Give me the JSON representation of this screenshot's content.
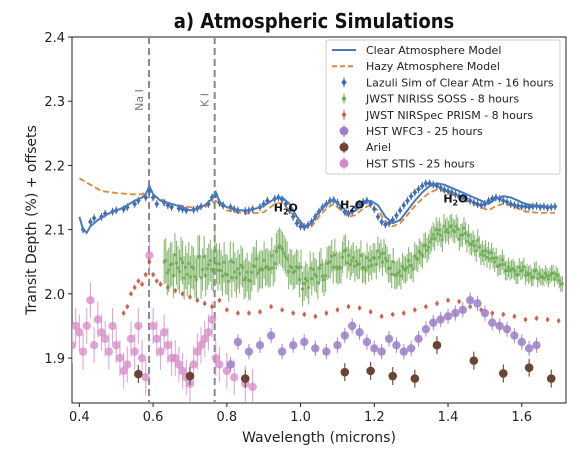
{
  "chart_data": {
    "type": "scatter",
    "title": "a) Atmospheric Simulations",
    "xlabel": "Wavelength (microns)",
    "ylabel": "Transit Depth (%) + offsets",
    "xlim": [
      0.38,
      1.72
    ],
    "ylim": [
      1.83,
      2.4
    ],
    "xticks": [
      "0.4",
      "0.6",
      "0.8",
      "1.0",
      "1.2",
      "1.4",
      "1.6"
    ],
    "yticks": [
      "1.9",
      "2.0",
      "2.1",
      "2.2",
      "2.3",
      "2.4"
    ],
    "legend_position": "top-right",
    "colors": {
      "clear": "#4a7ab8",
      "hazy": "#e0883a",
      "lazuli": "#3f6db0",
      "niriss": "#6aa84f",
      "nirspec": "#cc5a45",
      "wfc3": "#9b7fc8",
      "ariel": "#6b4436",
      "stis": "#d58ac6",
      "vline": "#888888"
    },
    "vlines": [
      {
        "x": 0.589,
        "label": "Na I"
      },
      {
        "x": 0.767,
        "label": "K I"
      }
    ],
    "annotations": [
      {
        "text": "H2O",
        "x": 0.96,
        "y": 2.128
      },
      {
        "text": "H2O",
        "x": 1.14,
        "y": 2.133
      },
      {
        "text": "H2O",
        "x": 1.42,
        "y": 2.142
      }
    ],
    "series": [
      {
        "name": "Clear Atmosphere Model",
        "kind": "line",
        "dash": false,
        "x": [
          0.4,
          0.41,
          0.42,
          0.43,
          0.45,
          0.47,
          0.49,
          0.51,
          0.53,
          0.55,
          0.57,
          0.58,
          0.59,
          0.6,
          0.62,
          0.65,
          0.68,
          0.7,
          0.72,
          0.74,
          0.76,
          0.77,
          0.78,
          0.8,
          0.83,
          0.86,
          0.88,
          0.9,
          0.93,
          0.95,
          0.97,
          0.99,
          1.01,
          1.03,
          1.05,
          1.07,
          1.09,
          1.11,
          1.13,
          1.15,
          1.17,
          1.19,
          1.21,
          1.23,
          1.25,
          1.27,
          1.29,
          1.31,
          1.33,
          1.35,
          1.37,
          1.39,
          1.41,
          1.43,
          1.45,
          1.47,
          1.49,
          1.51,
          1.53,
          1.55,
          1.57,
          1.59,
          1.61,
          1.63,
          1.65,
          1.67,
          1.69
        ],
        "y": [
          2.12,
          2.1,
          2.095,
          2.105,
          2.115,
          2.122,
          2.128,
          2.132,
          2.138,
          2.145,
          2.15,
          2.155,
          2.168,
          2.155,
          2.145,
          2.14,
          2.135,
          2.13,
          2.132,
          2.138,
          2.148,
          2.158,
          2.143,
          2.135,
          2.13,
          2.13,
          2.133,
          2.137,
          2.148,
          2.15,
          2.14,
          2.12,
          2.105,
          2.11,
          2.128,
          2.14,
          2.146,
          2.136,
          2.126,
          2.13,
          2.14,
          2.145,
          2.138,
          2.12,
          2.11,
          2.115,
          2.13,
          2.145,
          2.158,
          2.168,
          2.172,
          2.17,
          2.165,
          2.16,
          2.155,
          2.15,
          2.145,
          2.14,
          2.148,
          2.152,
          2.15,
          2.145,
          2.14,
          2.138,
          2.137,
          2.136,
          2.136
        ]
      },
      {
        "name": "Hazy Atmosphere Model",
        "kind": "line",
        "dash": true,
        "x": [
          0.4,
          0.43,
          0.46,
          0.5,
          0.54,
          0.57,
          0.59,
          0.61,
          0.65,
          0.7,
          0.74,
          0.77,
          0.8,
          0.85,
          0.9,
          0.93,
          0.95,
          0.97,
          0.99,
          1.01,
          1.03,
          1.05,
          1.07,
          1.09,
          1.11,
          1.13,
          1.15,
          1.17,
          1.19,
          1.21,
          1.23,
          1.25,
          1.27,
          1.29,
          1.31,
          1.33,
          1.35,
          1.37,
          1.39,
          1.41,
          1.43,
          1.45,
          1.47,
          1.49,
          1.51,
          1.53,
          1.55,
          1.57,
          1.59,
          1.61,
          1.63,
          1.65,
          1.67,
          1.69
        ],
        "y": [
          2.18,
          2.17,
          2.16,
          2.157,
          2.155,
          2.155,
          2.162,
          2.15,
          2.14,
          2.135,
          2.135,
          2.145,
          2.13,
          2.125,
          2.127,
          2.14,
          2.142,
          2.13,
          2.115,
          2.103,
          2.105,
          2.12,
          2.133,
          2.14,
          2.13,
          2.12,
          2.123,
          2.133,
          2.138,
          2.13,
          2.113,
          2.105,
          2.11,
          2.123,
          2.137,
          2.148,
          2.158,
          2.162,
          2.16,
          2.155,
          2.15,
          2.145,
          2.14,
          2.135,
          2.13,
          2.137,
          2.14,
          2.138,
          2.133,
          2.128,
          2.127,
          2.126,
          2.126,
          2.126
        ]
      },
      {
        "name": "Lazuli Sim of Clear Atm - 16 hours",
        "kind": "errorbar",
        "marker": "diamond",
        "x": [
          0.41,
          0.43,
          0.44,
          0.46,
          0.47,
          0.49,
          0.5,
          0.52,
          0.53,
          0.55,
          0.56,
          0.58,
          0.59,
          0.6,
          0.61,
          0.63,
          0.64,
          0.65,
          0.67,
          0.68,
          0.69,
          0.71,
          0.72,
          0.73,
          0.75,
          0.76,
          0.77,
          0.78,
          0.79,
          0.81,
          0.82,
          0.83,
          0.85,
          0.86,
          0.87,
          0.89,
          0.9,
          0.91,
          0.93,
          0.94,
          0.95,
          0.96,
          0.97,
          0.98,
          0.99,
          1.0,
          1.01,
          1.02,
          1.03,
          1.04,
          1.05,
          1.06,
          1.07,
          1.08,
          1.09,
          1.1,
          1.11,
          1.12,
          1.13,
          1.14,
          1.15,
          1.16,
          1.17,
          1.18,
          1.19,
          1.2,
          1.21,
          1.22,
          1.23,
          1.24,
          1.25,
          1.26,
          1.27,
          1.28,
          1.29,
          1.3,
          1.31,
          1.32,
          1.33,
          1.34,
          1.35,
          1.36,
          1.37,
          1.38,
          1.39,
          1.4,
          1.41,
          1.42,
          1.43,
          1.44,
          1.45,
          1.46,
          1.47,
          1.48,
          1.49,
          1.5,
          1.51,
          1.52,
          1.53,
          1.54,
          1.55,
          1.56,
          1.57,
          1.58,
          1.59,
          1.6,
          1.61,
          1.62,
          1.63,
          1.64,
          1.65,
          1.66,
          1.67,
          1.68,
          1.69
        ],
        "y": [
          2.1,
          2.112,
          2.118,
          2.12,
          2.125,
          2.128,
          2.13,
          2.132,
          2.135,
          2.14,
          2.145,
          2.15,
          2.16,
          2.15,
          2.14,
          2.142,
          2.138,
          2.135,
          2.133,
          2.132,
          2.13,
          2.131,
          2.133,
          2.136,
          2.14,
          2.15,
          2.155,
          2.142,
          2.138,
          2.135,
          2.132,
          2.13,
          2.129,
          2.13,
          2.132,
          2.135,
          2.14,
          2.145,
          2.148,
          2.15,
          2.147,
          2.14,
          2.13,
          2.12,
          2.11,
          2.105,
          2.104,
          2.107,
          2.112,
          2.12,
          2.128,
          2.135,
          2.14,
          2.145,
          2.146,
          2.142,
          2.135,
          2.128,
          2.125,
          2.128,
          2.135,
          2.14,
          2.143,
          2.145,
          2.14,
          2.132,
          2.12,
          2.112,
          2.108,
          2.11,
          2.115,
          2.122,
          2.13,
          2.138,
          2.145,
          2.152,
          2.158,
          2.163,
          2.168,
          2.172,
          2.172,
          2.17,
          2.168,
          2.165,
          2.162,
          2.16,
          2.158,
          2.155,
          2.152,
          2.15,
          2.148,
          2.145,
          2.142,
          2.14,
          2.138,
          2.14,
          2.145,
          2.148,
          2.15,
          2.148,
          2.145,
          2.143,
          2.14,
          2.138,
          2.137,
          2.136,
          2.136,
          2.135,
          2.136,
          2.137,
          2.135,
          2.136,
          2.134,
          2.135,
          2.136
        ],
        "err": 0.006
      },
      {
        "name": "JWST NIRISS SOSS - 8 hours",
        "kind": "errorbar",
        "marker": "dot",
        "dense": true,
        "x_start": 0.63,
        "x_end": 1.71,
        "count": 260,
        "profile_x": [
          0.63,
          0.66,
          0.7,
          0.74,
          0.77,
          0.8,
          0.85,
          0.9,
          0.94,
          0.97,
          1.01,
          1.05,
          1.09,
          1.13,
          1.17,
          1.21,
          1.25,
          1.29,
          1.33,
          1.37,
          1.41,
          1.45,
          1.49,
          1.53,
          1.57,
          1.61,
          1.65,
          1.69,
          1.71
        ],
        "profile_y": [
          2.05,
          2.045,
          2.04,
          2.04,
          2.05,
          2.035,
          2.035,
          2.04,
          2.06,
          2.05,
          2.02,
          2.03,
          2.05,
          2.06,
          2.05,
          2.06,
          2.04,
          2.04,
          2.06,
          2.09,
          2.1,
          2.09,
          2.07,
          2.05,
          2.04,
          2.035,
          2.03,
          2.025,
          2.02
        ],
        "err_start": 0.035,
        "err_end": 0.012
      },
      {
        "name": "JWST NIRSpec PRISM - 8 hours",
        "kind": "errorbar",
        "marker": "dot",
        "x": [
          0.52,
          0.53,
          0.54,
          0.55,
          0.56,
          0.57,
          0.58,
          0.59,
          0.6,
          0.61,
          0.62,
          0.64,
          0.66,
          0.68,
          0.7,
          0.72,
          0.74,
          0.76,
          0.78,
          0.8,
          0.83,
          0.86,
          0.89,
          0.92,
          0.95,
          0.98,
          1.01,
          1.04,
          1.07,
          1.1,
          1.13,
          1.16,
          1.19,
          1.22,
          1.25,
          1.28,
          1.31,
          1.34,
          1.37,
          1.4,
          1.43,
          1.46,
          1.49,
          1.52,
          1.55,
          1.58,
          1.61,
          1.64,
          1.67,
          1.7
        ],
        "y": [
          1.97,
          1.98,
          2.0,
          2.01,
          2.02,
          2.015,
          2.03,
          2.05,
          2.03,
          2.02,
          2.015,
          2.01,
          2.005,
          2.0,
          1.995,
          1.99,
          1.985,
          1.98,
          1.99,
          1.975,
          1.97,
          1.97,
          1.972,
          1.98,
          1.975,
          1.97,
          1.968,
          1.965,
          1.97,
          1.975,
          1.98,
          1.978,
          1.972,
          1.965,
          1.968,
          1.97,
          1.975,
          1.98,
          1.985,
          1.99,
          1.988,
          1.98,
          1.975,
          1.97,
          1.968,
          1.965,
          1.96,
          1.962,
          1.96,
          1.958
        ],
        "err": 0.004
      },
      {
        "name": "HST WFC3 - 25 hours",
        "kind": "errorbar",
        "marker": "dot-large",
        "x": [
          0.81,
          0.83,
          0.86,
          0.89,
          0.92,
          0.95,
          0.98,
          1.01,
          1.04,
          1.07,
          1.1,
          1.12,
          1.14,
          1.16,
          1.18,
          1.2,
          1.22,
          1.24,
          1.26,
          1.28,
          1.3,
          1.32,
          1.34,
          1.36,
          1.38,
          1.4,
          1.42,
          1.44,
          1.46,
          1.48,
          1.5,
          1.52,
          1.54,
          1.56,
          1.58,
          1.6,
          1.62,
          1.64
        ],
        "y": [
          1.89,
          1.925,
          1.91,
          1.92,
          1.935,
          1.91,
          1.92,
          1.925,
          1.915,
          1.91,
          1.92,
          1.935,
          1.95,
          1.94,
          1.925,
          1.915,
          1.91,
          1.93,
          1.92,
          1.91,
          1.915,
          1.93,
          1.945,
          1.955,
          1.96,
          1.965,
          1.97,
          1.975,
          1.99,
          1.985,
          1.97,
          1.955,
          1.95,
          1.945,
          1.935,
          1.925,
          1.915,
          1.92
        ],
        "err": 0.012
      },
      {
        "name": "Ariel",
        "kind": "errorbar",
        "marker": "dot-large",
        "x": [
          0.56,
          0.7,
          0.85,
          1.12,
          1.19,
          1.25,
          1.31,
          1.37,
          1.47,
          1.55,
          1.62,
          1.68
        ],
        "y": [
          1.875,
          1.872,
          1.868,
          1.878,
          1.88,
          1.872,
          1.868,
          1.92,
          1.896,
          1.876,
          1.885,
          1.868
        ],
        "err": 0.014
      },
      {
        "name": "HST STIS - 25 hours",
        "kind": "errorbar",
        "marker": "dot-large",
        "x": [
          0.38,
          0.39,
          0.4,
          0.41,
          0.42,
          0.43,
          0.44,
          0.45,
          0.46,
          0.47,
          0.48,
          0.49,
          0.5,
          0.51,
          0.52,
          0.53,
          0.54,
          0.55,
          0.56,
          0.57,
          0.58,
          0.59,
          0.6,
          0.61,
          0.62,
          0.63,
          0.64,
          0.65,
          0.66,
          0.67,
          0.68,
          0.69,
          0.7,
          0.71,
          0.72,
          0.73,
          0.74,
          0.75,
          0.76,
          0.77,
          0.78,
          0.8,
          0.82,
          0.85,
          0.87
        ],
        "y": [
          1.92,
          1.95,
          1.94,
          1.91,
          1.95,
          1.99,
          1.92,
          1.96,
          1.94,
          1.93,
          1.91,
          1.95,
          1.92,
          1.9,
          1.88,
          1.89,
          1.93,
          1.91,
          1.95,
          1.9,
          1.87,
          2.06,
          1.95,
          1.93,
          1.91,
          1.94,
          1.92,
          1.9,
          1.9,
          1.89,
          1.88,
          1.87,
          1.86,
          1.89,
          1.91,
          1.92,
          1.93,
          1.94,
          1.96,
          1.9,
          1.89,
          1.88,
          1.87,
          1.86,
          1.855
        ],
        "err": 0.028
      }
    ],
    "legend": [
      "Clear Atmosphere Model",
      "Hazy Atmosphere Model",
      "Lazuli Sim of Clear Atm - 16 hours",
      "JWST NIRISS SOSS - 8 hours",
      "JWST NIRSpec PRISM - 8 hours",
      "HST WFC3 - 25 hours",
      "Ariel",
      "HST STIS - 25 hours"
    ]
  }
}
